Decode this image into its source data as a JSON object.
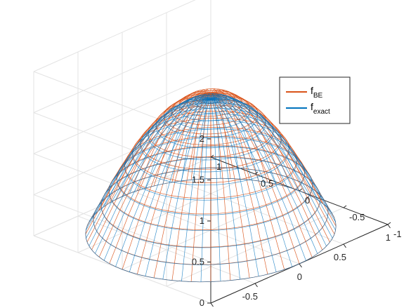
{
  "chart_data": {
    "type": "surface-3d-wireframe",
    "title": "",
    "xlabel": "",
    "ylabel": "",
    "zlabel": "",
    "xlim": [
      -1,
      1
    ],
    "ylim": [
      -1,
      1
    ],
    "zlim": [
      0,
      2
    ],
    "x_ticks": [
      -1,
      -0.5,
      0,
      0.5,
      1
    ],
    "y_ticks": [
      -1,
      -0.5,
      0,
      0.5,
      1
    ],
    "z_ticks": [
      0,
      0.5,
      1,
      1.5,
      2
    ],
    "x_tick_labels": [
      "-1",
      "-0.5",
      "0",
      "0.5",
      "1"
    ],
    "y_tick_labels": [
      "-1",
      "-0.5",
      "0",
      "0.5",
      "1"
    ],
    "z_tick_labels": [
      "0",
      "0.5",
      "1",
      "1.5",
      "2"
    ],
    "domain": "unit disk, r <= 1",
    "grid": true,
    "legend_position": "top-right",
    "series": [
      {
        "name": "f",
        "subscript": "BE",
        "color": "#d95319",
        "peak": 1.66,
        "radial_samples": [
          {
            "r": 0.0,
            "z": 1.66
          },
          {
            "r": 0.2,
            "z": 1.6
          },
          {
            "r": 0.4,
            "z": 1.38
          },
          {
            "r": 0.6,
            "z": 1.03
          },
          {
            "r": 0.8,
            "z": 0.55
          },
          {
            "r": 1.0,
            "z": 0.0
          }
        ]
      },
      {
        "name": "f",
        "subscript": "exact",
        "color": "#0072bd",
        "peak": 1.6,
        "radial_samples": [
          {
            "r": 0.0,
            "z": 1.6
          },
          {
            "r": 0.2,
            "z": 1.54
          },
          {
            "r": 0.4,
            "z": 1.34
          },
          {
            "r": 0.6,
            "z": 1.0
          },
          {
            "r": 0.8,
            "z": 0.54
          },
          {
            "r": 1.0,
            "z": 0.0
          }
        ]
      }
    ]
  }
}
